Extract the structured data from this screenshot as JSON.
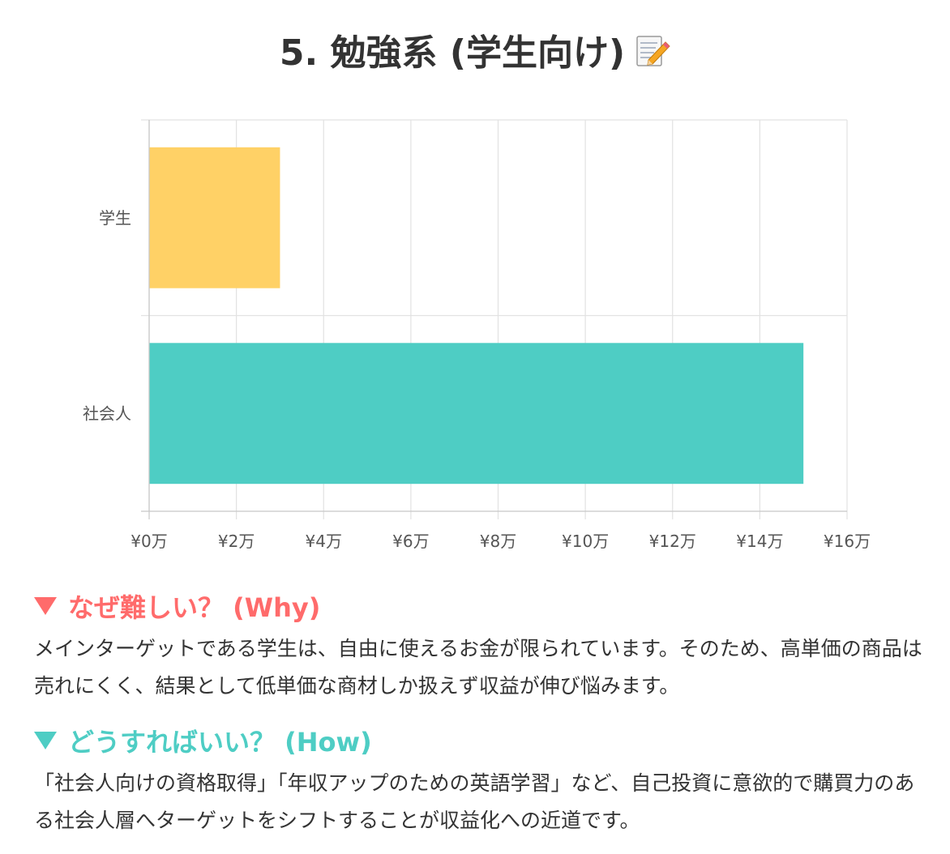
{
  "title": "5. 勉強系 (学生向け)",
  "title_icon": "memo-pencil-icon",
  "chart_data": {
    "type": "bar",
    "orientation": "horizontal",
    "categories": [
      "学生",
      "社会人"
    ],
    "values": [
      30000,
      150000
    ],
    "colors": [
      "#ffd166",
      "#4ecdc4"
    ],
    "xlim": [
      0,
      160000
    ],
    "x_ticks": [
      {
        "value": 0,
        "label": "¥0万"
      },
      {
        "value": 20000,
        "label": "¥2万"
      },
      {
        "value": 40000,
        "label": "¥4万"
      },
      {
        "value": 60000,
        "label": "¥6万"
      },
      {
        "value": 80000,
        "label": "¥8万"
      },
      {
        "value": 100000,
        "label": "¥10万"
      },
      {
        "value": 120000,
        "label": "¥12万"
      },
      {
        "value": 140000,
        "label": "¥14万"
      },
      {
        "value": 160000,
        "label": "¥16万"
      }
    ],
    "grid": true,
    "legend": "none"
  },
  "why": {
    "heading": "なぜ難しい？ (Why)",
    "text": "メインターゲットである学生は、自由に使えるお金が限られています。そのため、高単価の商品は売れにくく、結果として低単価な商材しか扱えず収益が伸び悩みます。",
    "color": "#ff6b6b"
  },
  "how": {
    "heading": "どうすればいい？ (How)",
    "text": "「社会人向けの資格取得」「年収アップのための英語学習」など、自己投資に意欲的で購買力のある社会人層へターゲットをシフトすることが収益化への近道です。",
    "color": "#4ecdc4"
  }
}
